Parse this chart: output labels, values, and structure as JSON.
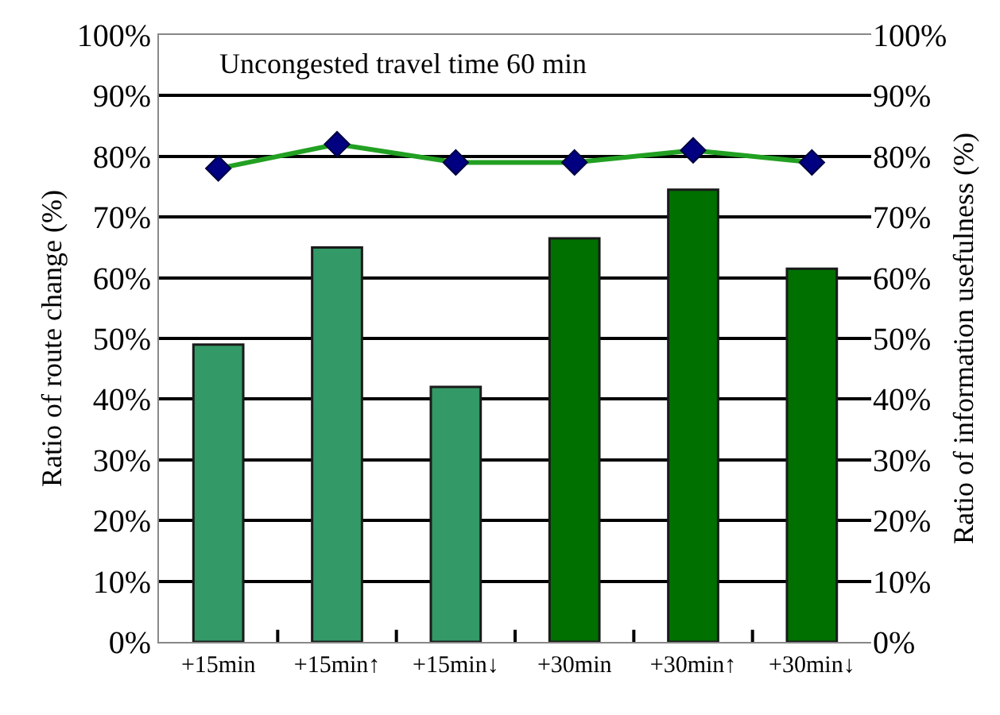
{
  "chart_data": {
    "type": "bar",
    "categories": [
      "+15min",
      "+15min↑",
      "+15min↓",
      "+30min",
      "+30min↑",
      "+30min↓"
    ],
    "series": [
      {
        "colors": [
          "#339966",
          "#339966",
          "#339966",
          "#007000",
          "#007000",
          "#007000"
        ],
        "values": [
          49,
          65,
          42,
          66.5,
          74.5,
          61.5
        ]
      },
      {
        "type": "line",
        "axis": "y2",
        "color": "#22a022",
        "colors": [
          "#000080",
          "#000080",
          "#000080",
          "#000080",
          "#000080",
          "#000080"
        ],
        "values": [
          78,
          82,
          79,
          79,
          81,
          79
        ]
      }
    ],
    "ylabel": "Ratio of route change (%)",
    "y2label": "Ratio of information usefulness (%)",
    "ylim": [
      0,
      100
    ],
    "yticks": [
      {
        "value": 0,
        "label": "0%"
      },
      {
        "value": 10,
        "label": "10%"
      },
      {
        "value": 20,
        "label": "20%"
      },
      {
        "value": 30,
        "label": "30%"
      },
      {
        "value": 40,
        "label": "40%"
      },
      {
        "value": 50,
        "label": "50%"
      },
      {
        "value": 60,
        "label": "60%"
      },
      {
        "value": 70,
        "label": "70%"
      },
      {
        "value": 80,
        "label": "80%"
      },
      {
        "value": 90,
        "label": "90%"
      },
      {
        "value": 100,
        "label": "100%"
      }
    ],
    "y2lim": [
      0,
      100
    ],
    "y2ticks": [
      {
        "value": 0,
        "label": "0%"
      },
      {
        "value": 10,
        "label": "10%"
      },
      {
        "value": 20,
        "label": "20%"
      },
      {
        "value": 30,
        "label": "30%"
      },
      {
        "value": 40,
        "label": "40%"
      },
      {
        "value": 50,
        "label": "50%"
      },
      {
        "value": 60,
        "label": "60%"
      },
      {
        "value": 70,
        "label": "70%"
      },
      {
        "value": 80,
        "label": "80%"
      },
      {
        "value": 90,
        "label": "90%"
      },
      {
        "value": 100,
        "label": "100%"
      }
    ],
    "annotations": [
      "Uncongested travel time 60 min"
    ],
    "grid": "y",
    "legend": false,
    "marker": "diamond",
    "line_style": "solid"
  }
}
